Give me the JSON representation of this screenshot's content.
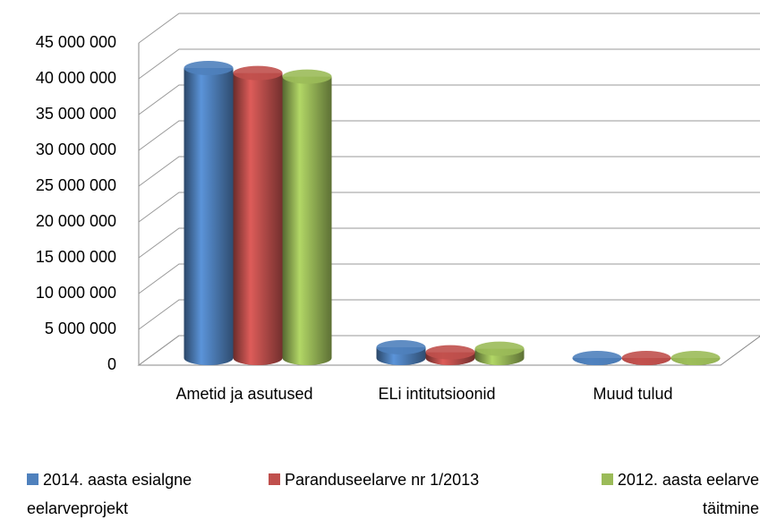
{
  "chart_data": {
    "type": "bar3d",
    "categories": [
      "Ametid ja asutused",
      "ELi intitutsioonid",
      "Muud tulud"
    ],
    "series": [
      {
        "name": "2014. aasta esialgne eelarveprojekt",
        "color": "#4f81bd",
        "values": [
          42500000,
          3500000,
          700000
        ]
      },
      {
        "name": "Paranduseelarve nr 1/2013",
        "color": "#c0504d",
        "values": [
          41800000,
          2800000,
          500000
        ]
      },
      {
        "name": "2012. aasta eelarve täitmine",
        "color": "#9bbb59",
        "values": [
          41300000,
          3300000,
          800000
        ]
      }
    ],
    "ylim": [
      0,
      45000000
    ],
    "yticks": [
      0,
      {
        "value": 5000000,
        "label": "5 000 000"
      },
      {
        "value": 10000000,
        "label": "10 000 000"
      },
      {
        "value": 15000000,
        "label": "15 000 000"
      },
      {
        "value": 20000000,
        "label": "20 000 000"
      },
      {
        "value": 25000000,
        "label": "25 000 000"
      },
      {
        "value": 30000000,
        "label": "30 000 000"
      },
      {
        "value": 35000000,
        "label": "35 000 000"
      },
      {
        "value": 40000000,
        "label": "40 000 000"
      },
      {
        "value": 45000000,
        "label": "45 000 000"
      }
    ],
    "grid": true,
    "legend": "bottom"
  }
}
